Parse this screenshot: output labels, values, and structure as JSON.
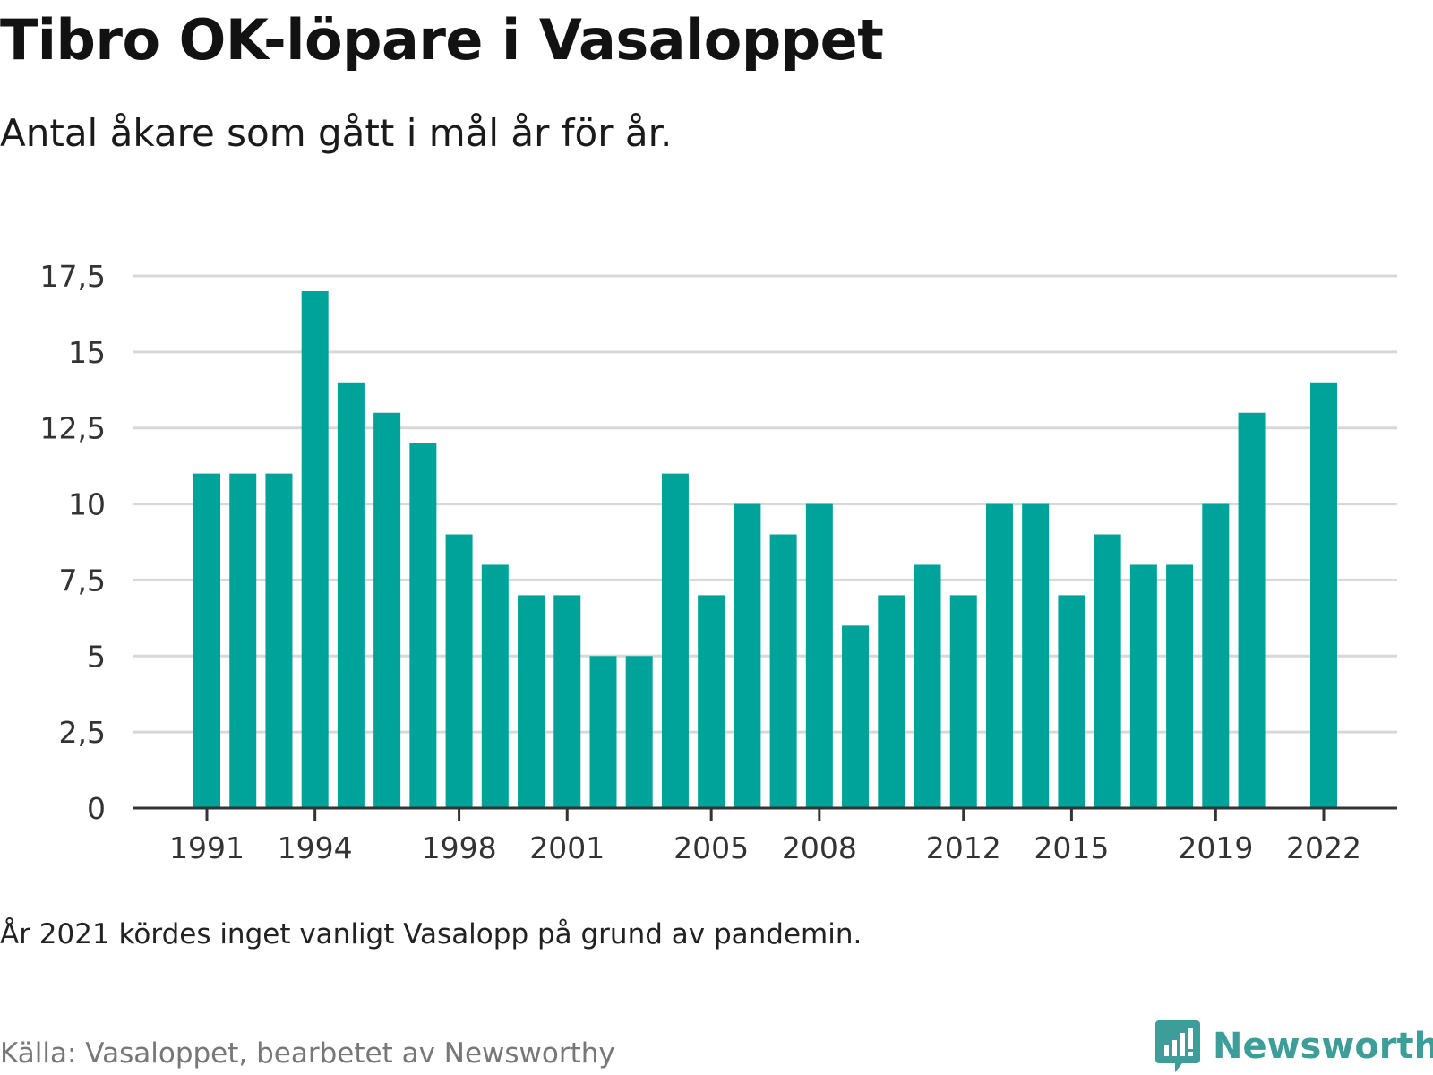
{
  "header": {
    "title": "Tibro OK-löpare i Vasaloppet",
    "subtitle": "Antal åkare som gått i mål år för år."
  },
  "footer": {
    "note": "År 2021 kördes inget vanligt Vasalopp på grund av pandemin.",
    "source": "Källa: Vasaloppet, bearbetet av Newsworthy",
    "brand": "Newsworthy"
  },
  "colors": {
    "bar": "#00a39a",
    "grid": "#d8d8d8",
    "axis": "#333333",
    "brand": "#3d9e99"
  },
  "chart_data": {
    "type": "bar",
    "title": "Tibro OK-löpare i Vasaloppet",
    "subtitle": "Antal åkare som gått i mål år för år.",
    "xlabel": "",
    "ylabel": "",
    "x": [
      1991,
      1992,
      1993,
      1994,
      1995,
      1996,
      1997,
      1998,
      1999,
      2000,
      2001,
      2002,
      2003,
      2004,
      2005,
      2006,
      2007,
      2008,
      2009,
      2010,
      2011,
      2012,
      2013,
      2014,
      2015,
      2016,
      2017,
      2018,
      2019,
      2020,
      2021,
      2022
    ],
    "values": [
      11,
      11,
      11,
      17,
      14,
      13,
      12,
      9,
      8,
      7,
      7,
      5,
      5,
      11,
      7,
      10,
      9,
      10,
      6,
      7,
      8,
      7,
      10,
      10,
      7,
      9,
      8,
      8,
      10,
      13,
      null,
      14
    ],
    "xticks": [
      "1991",
      "1994",
      "1998",
      "2001",
      "2005",
      "2008",
      "2012",
      "2015",
      "2019",
      "2022"
    ],
    "yticks": [
      "0",
      "2,5",
      "5",
      "7,5",
      "10",
      "12,5",
      "15",
      "17,5"
    ],
    "ylim": [
      0,
      17.5
    ],
    "grid": true,
    "legend": "none"
  }
}
